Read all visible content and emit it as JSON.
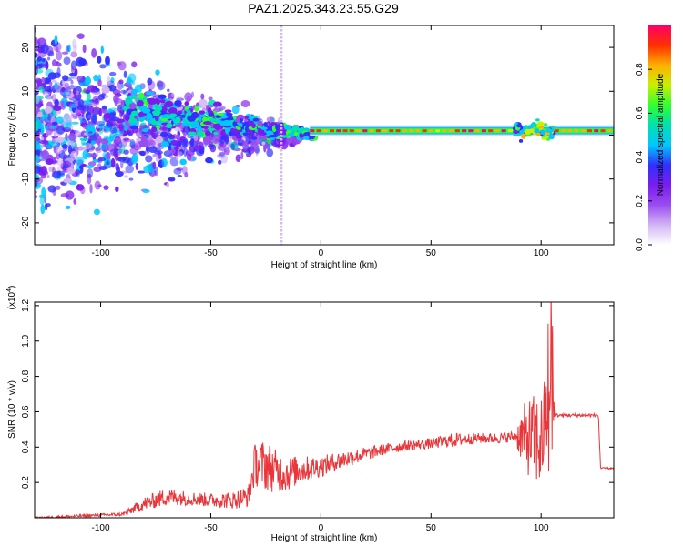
{
  "title": "PAZ1.2025.343.23.55.G29",
  "chart_data": [
    {
      "type": "heatmap",
      "title": "PAZ1.2025.343.23.55.G29",
      "xlabel": "Height of straight line (km)",
      "ylabel": "Frequency (Hz)",
      "xlim": [
        -130,
        133
      ],
      "ylim": [
        -25,
        25
      ],
      "xticks": [
        -100,
        -50,
        0,
        50,
        100
      ],
      "yticks": [
        20,
        10,
        0,
        -10,
        -20
      ],
      "colorbar": {
        "label": "Normalized spectral amplitude",
        "range": [
          0,
          1
        ],
        "ticks": [
          0.0,
          0.2,
          0.4,
          0.6,
          0.8
        ],
        "tick_labels": [
          "0.0",
          "0.2",
          "0.4",
          "0.6",
          "0.8"
        ],
        "colormap": [
          "#ffffff",
          "#d2b4f5",
          "#9a4cf0",
          "#7a1cf0",
          "#3030ff",
          "#00c8ff",
          "#00e0b0",
          "#30ff30",
          "#c8f000",
          "#ffb000",
          "#ff3000",
          "#ff0066"
        ]
      },
      "main_band": {
        "x_start": -5,
        "x_end": 133,
        "frequency_hz": 1,
        "peak_amplitude": 1.0
      },
      "scatter_region": {
        "x_start": -130,
        "x_end": -20,
        "frequency_spread_hz": [
          -25,
          25
        ]
      },
      "vertical_artifact_x": -18
    },
    {
      "type": "line",
      "xlabel": "Height of straight line (km)",
      "ylabel": "SNR (10 * v/v)",
      "y_exponent_label": "(x10",
      "y_exponent": "4",
      "y_exponent_close": ")",
      "xlim": [
        -130,
        133
      ],
      "ylim": [
        0,
        1.22
      ],
      "xticks": [
        -100,
        -50,
        0,
        50,
        100
      ],
      "yticks": [
        0.2,
        0.4,
        0.6,
        0.8,
        1.0,
        1.2
      ],
      "ytick_labels": [
        "0.2",
        "0.4",
        "0.6",
        "0.8",
        "1.0",
        "1.2"
      ],
      "series": [
        {
          "name": "SNR",
          "color": "#e8363a",
          "envelope_x": [
            -130,
            -90,
            -80,
            -70,
            -60,
            -50,
            -40,
            -33,
            -30,
            -25,
            -20,
            -15,
            -10,
            0,
            10,
            20,
            30,
            40,
            50,
            60,
            70,
            80,
            88,
            92,
            96,
            100,
            103,
            104.5,
            106,
            110,
            120,
            126,
            127,
            133
          ],
          "envelope_y": [
            0.0,
            0.02,
            0.08,
            0.12,
            0.11,
            0.1,
            0.1,
            0.12,
            0.3,
            0.3,
            0.26,
            0.25,
            0.27,
            0.29,
            0.33,
            0.36,
            0.39,
            0.41,
            0.42,
            0.44,
            0.45,
            0.45,
            0.46,
            0.46,
            0.45,
            0.42,
            0.6,
            0.9,
            0.58,
            0.58,
            0.58,
            0.58,
            0.28,
            0.28
          ],
          "noise_amplitude": [
            0.005,
            0.01,
            0.04,
            0.05,
            0.04,
            0.04,
            0.05,
            0.06,
            0.12,
            0.15,
            0.12,
            0.1,
            0.08,
            0.06,
            0.05,
            0.04,
            0.03,
            0.03,
            0.03,
            0.04,
            0.03,
            0.03,
            0.03,
            0.18,
            0.25,
            0.28,
            0.28,
            0.6,
            0.01,
            0.01,
            0.01,
            0.01,
            0.005,
            0.005
          ]
        }
      ]
    }
  ]
}
